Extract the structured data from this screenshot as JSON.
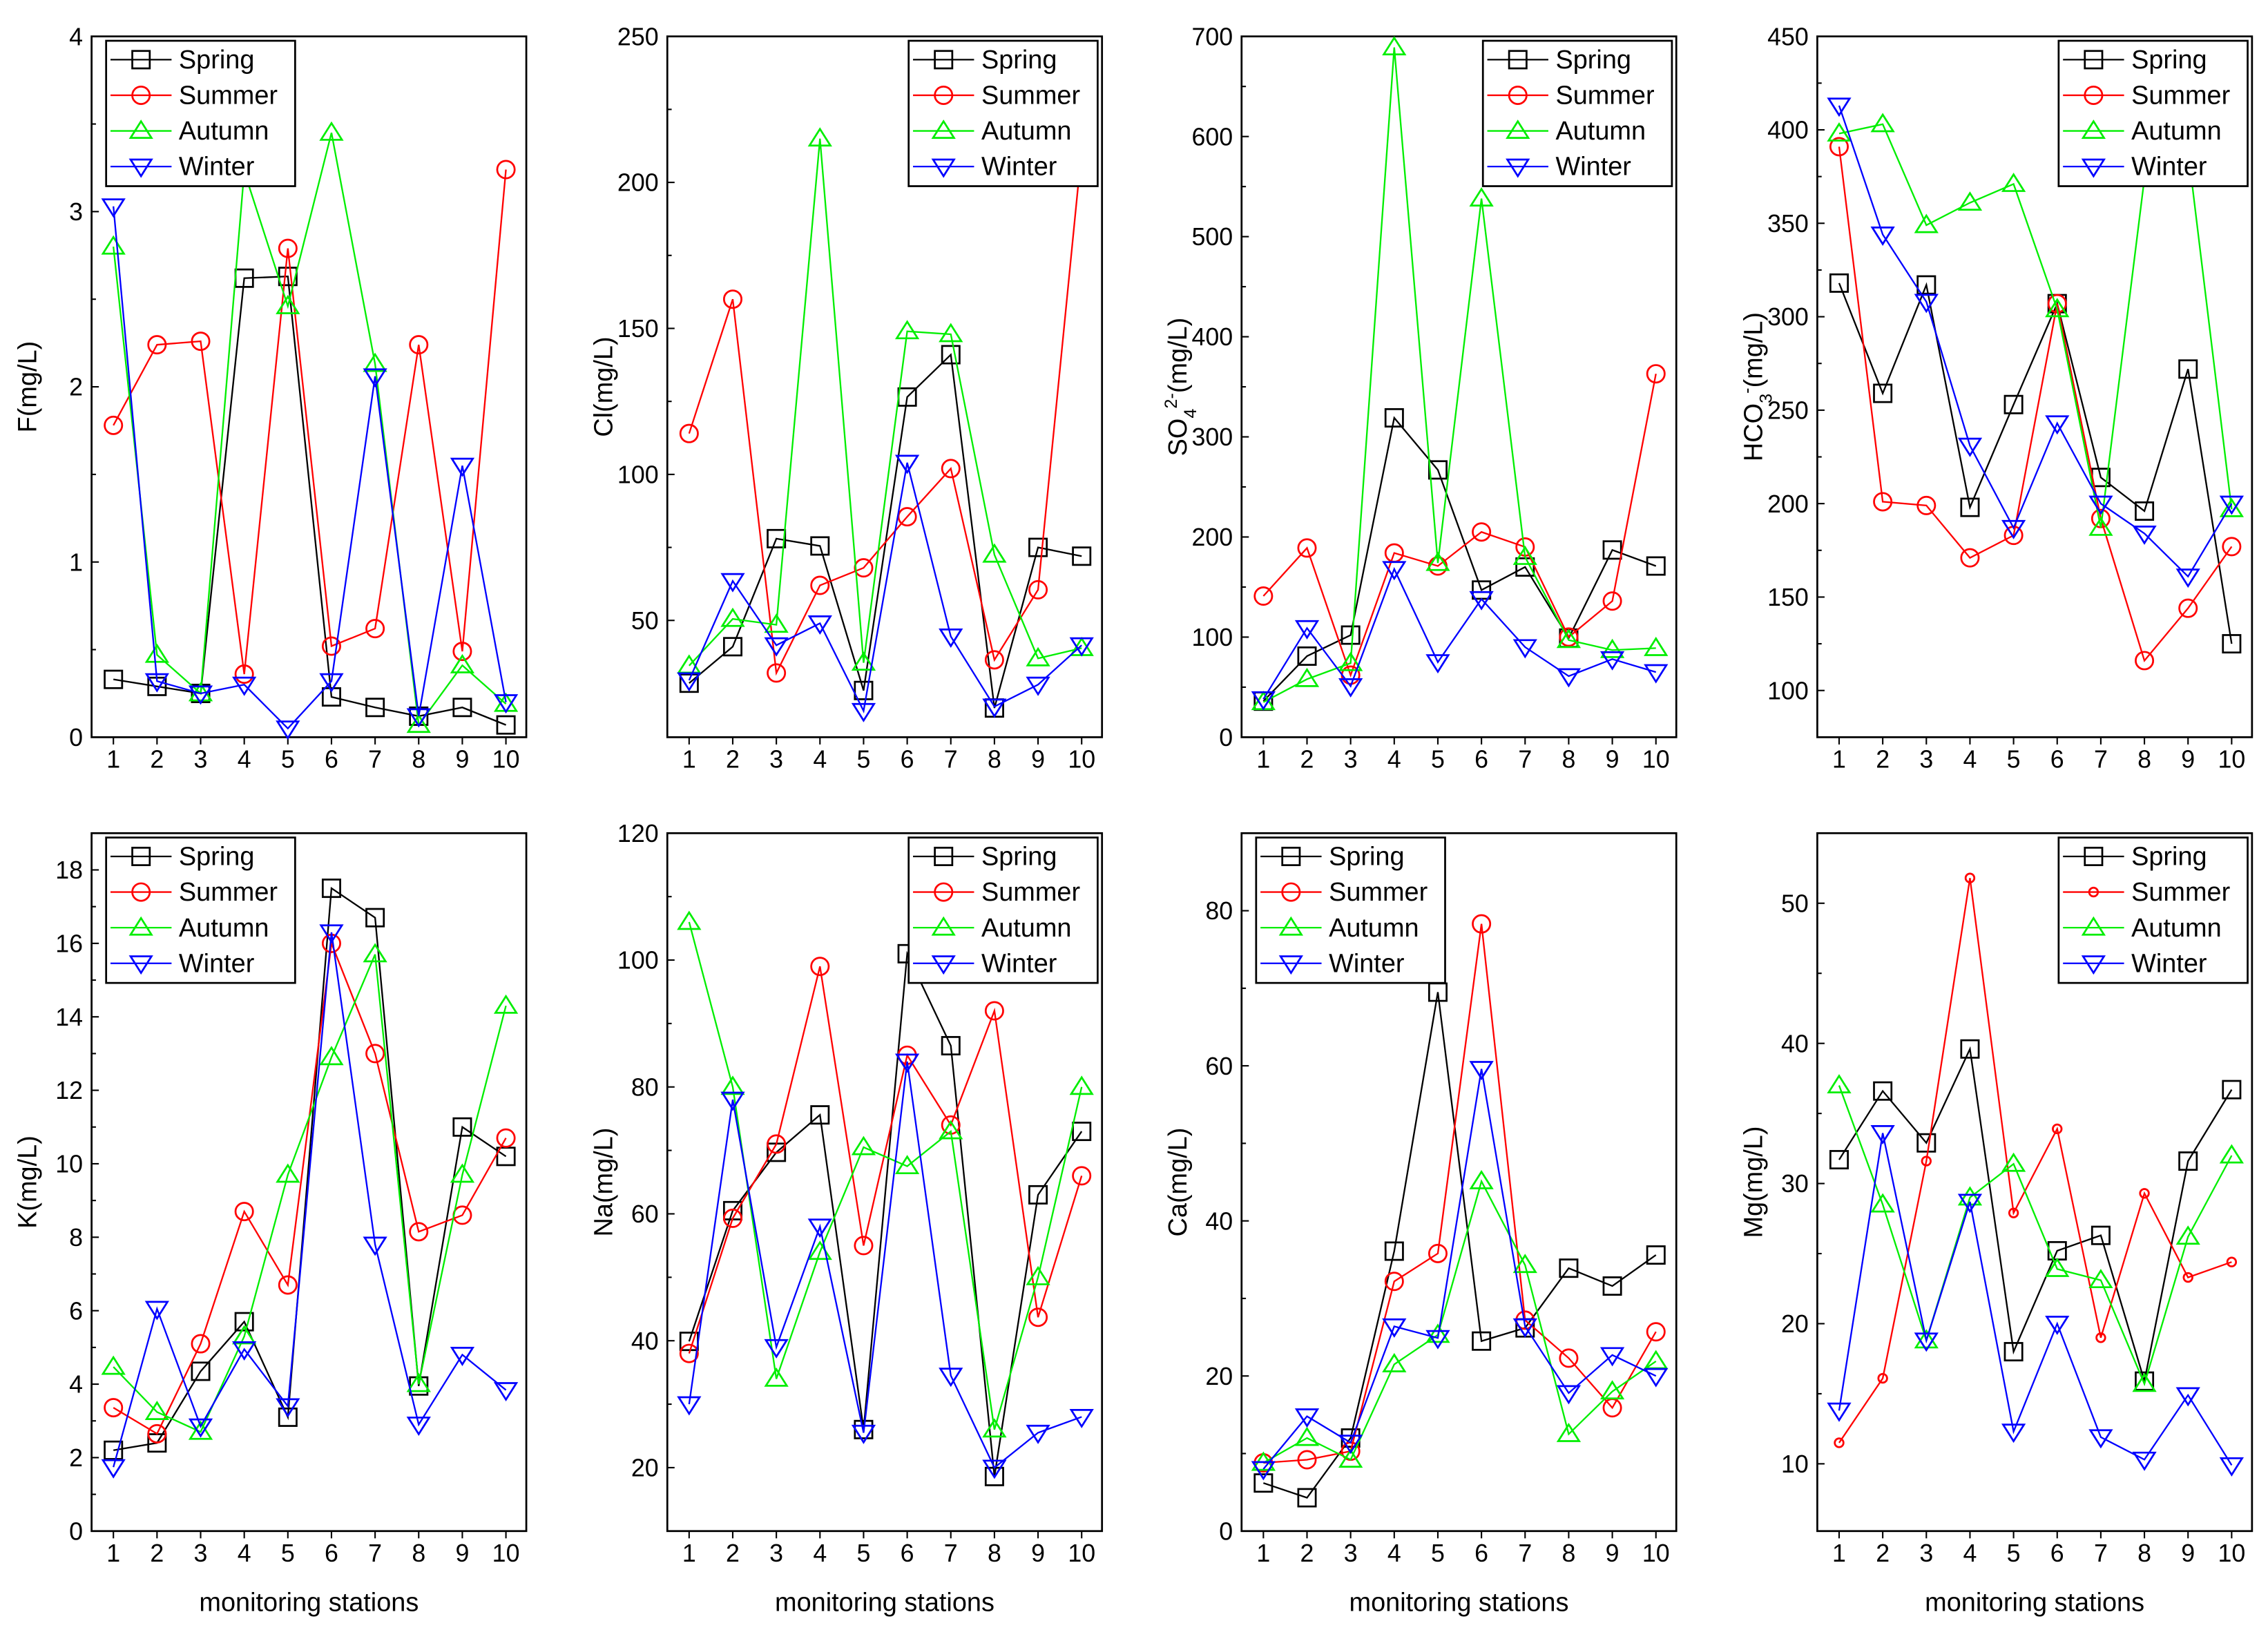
{
  "series_names": [
    "Spring",
    "Summer",
    "Autumn",
    "Winter"
  ],
  "series_colors": [
    "#000000",
    "#ff0000",
    "#00ee00",
    "#0000ff"
  ],
  "series_markers": [
    "square",
    "circle",
    "triangle-up",
    "triangle-down"
  ],
  "xlabel": "monitoring stations",
  "chart_data": [
    {
      "type": "line",
      "ylabel_parts": [
        [
          "F(mg/L)",
          ""
        ]
      ],
      "ylim": [
        0,
        4
      ],
      "yticks": [
        0,
        1,
        2,
        3,
        4
      ],
      "legend": "top-left",
      "x": [
        1,
        2,
        3,
        4,
        5,
        6,
        7,
        8,
        9,
        10
      ],
      "series": [
        {
          "name": "Spring",
          "values": [
            0.33,
            0.29,
            0.25,
            2.62,
            2.63,
            0.23,
            0.17,
            0.12,
            0.17,
            0.07
          ]
        },
        {
          "name": "Summer",
          "values": [
            1.78,
            2.24,
            2.26,
            0.36,
            2.79,
            0.52,
            0.62,
            2.24,
            0.49,
            3.24
          ]
        },
        {
          "name": "Autumn",
          "values": [
            2.8,
            0.47,
            0.25,
            3.23,
            2.46,
            3.45,
            2.13,
            0.07,
            0.41,
            0.19
          ]
        },
        {
          "name": "Winter",
          "values": [
            3.03,
            0.32,
            0.25,
            0.3,
            0.05,
            0.32,
            2.06,
            0.12,
            1.55,
            0.2
          ]
        }
      ]
    },
    {
      "type": "line",
      "ylabel_parts": [
        [
          "Cl(mg/L)",
          ""
        ]
      ],
      "ylim": [
        10,
        250
      ],
      "yticks": [
        50,
        100,
        150,
        200,
        250
      ],
      "legend": "top-right",
      "x": [
        1,
        2,
        3,
        4,
        5,
        6,
        7,
        8,
        9,
        10
      ],
      "series": [
        {
          "name": "Spring",
          "values": [
            28.5,
            41,
            78,
            75.5,
            26,
            126.5,
            141,
            20,
            75,
            72
          ]
        },
        {
          "name": "Summer",
          "values": [
            114,
            160,
            32,
            62,
            68,
            85.5,
            102,
            36.5,
            60.5,
            211
          ]
        },
        {
          "name": "Autumn",
          "values": [
            34.5,
            50.5,
            48.5,
            215,
            35.5,
            149,
            148,
            72.5,
            37,
            40.5
          ]
        },
        {
          "name": "Winter",
          "values": [
            29.5,
            63.5,
            41.5,
            49,
            19,
            104,
            44.5,
            20.5,
            28,
            41.5
          ]
        }
      ]
    },
    {
      "type": "line",
      "ylabel_parts": [
        [
          "SO",
          ""
        ],
        [
          "4",
          "sub"
        ],
        [
          "2-",
          "sup"
        ],
        [
          "(mg/L)",
          ""
        ]
      ],
      "ylim": [
        0,
        700
      ],
      "yticks": [
        0,
        100,
        200,
        300,
        400,
        500,
        600,
        700
      ],
      "legend": "top-right",
      "x": [
        1,
        2,
        3,
        4,
        5,
        6,
        7,
        8,
        9,
        10
      ],
      "series": [
        {
          "name": "Spring",
          "values": [
            36,
            81,
            102,
            319,
            267,
            147,
            170,
            99,
            187,
            171
          ]
        },
        {
          "name": "Summer",
          "values": [
            141,
            189,
            62,
            184,
            171,
            205,
            190,
            100,
            136,
            363
          ]
        },
        {
          "name": "Autumn",
          "values": [
            35,
            58,
            74,
            689,
            174,
            538,
            180,
            97,
            87,
            89
          ]
        },
        {
          "name": "Winter",
          "values": [
            38,
            109,
            51,
            168,
            75,
            138,
            90,
            61,
            78,
            65
          ]
        }
      ]
    },
    {
      "type": "line",
      "ylabel_parts": [
        [
          "HCO",
          ""
        ],
        [
          "3",
          "sub"
        ],
        [
          "-",
          "sup"
        ],
        [
          "(mg/L)",
          ""
        ]
      ],
      "ylim": [
        75,
        450
      ],
      "yticks": [
        100,
        150,
        200,
        250,
        300,
        350,
        400,
        450
      ],
      "legend": "top-right",
      "x": [
        1,
        2,
        3,
        4,
        5,
        6,
        7,
        8,
        9,
        10
      ],
      "series": [
        {
          "name": "Spring",
          "values": [
            318,
            259,
            317,
            198,
            253,
            307,
            214,
            196,
            272,
            125
          ]
        },
        {
          "name": "Summer",
          "values": [
            391,
            201,
            199,
            171,
            183,
            307,
            192,
            116,
            144,
            177
          ]
        },
        {
          "name": "Autumn",
          "values": [
            398,
            403,
            349,
            361,
            371,
            304,
            187,
            374,
            389,
            197
          ]
        },
        {
          "name": "Winter",
          "values": [
            413,
            344,
            308,
            231,
            187,
            243,
            200,
            184,
            161,
            200
          ]
        }
      ]
    },
    {
      "type": "line",
      "ylabel_parts": [
        [
          "K(mg/L)",
          ""
        ]
      ],
      "ylim": [
        0,
        19
      ],
      "yticks": [
        0,
        2,
        4,
        6,
        8,
        10,
        12,
        14,
        16,
        18
      ],
      "legend": "top-left",
      "x": [
        1,
        2,
        3,
        4,
        5,
        6,
        7,
        8,
        9,
        10
      ],
      "series": [
        {
          "name": "Spring",
          "values": [
            2.2,
            2.4,
            4.35,
            5.7,
            3.1,
            17.5,
            16.7,
            3.95,
            11,
            10.2
          ]
        },
        {
          "name": "Summer",
          "values": [
            3.36,
            2.65,
            5.1,
            8.7,
            6.7,
            16,
            13,
            8.15,
            8.6,
            10.7
          ]
        },
        {
          "name": "Autumn",
          "values": [
            4.47,
            3.24,
            2.7,
            5.3,
            9.7,
            12.9,
            15.7,
            4.0,
            9.7,
            14.3
          ]
        },
        {
          "name": "Winter",
          "values": [
            1.74,
            6.05,
            2.85,
            4.95,
            3.4,
            16.3,
            7.8,
            2.9,
            4.8,
            3.84
          ]
        }
      ]
    },
    {
      "type": "line",
      "ylabel_parts": [
        [
          "Na(mg/L)",
          ""
        ]
      ],
      "ylim": [
        10,
        120
      ],
      "yticks": [
        20,
        40,
        60,
        80,
        100,
        120
      ],
      "legend": "top-right",
      "x": [
        1,
        2,
        3,
        4,
        5,
        6,
        7,
        8,
        9,
        10
      ],
      "series": [
        {
          "name": "Spring",
          "values": [
            39.9,
            60.5,
            69.7,
            75.6,
            26,
            101,
            86.5,
            18.6,
            63,
            73
          ]
        },
        {
          "name": "Summer",
          "values": [
            38,
            59.3,
            71,
            99,
            55,
            85,
            74,
            92,
            43.7,
            66
          ]
        },
        {
          "name": "Autumn",
          "values": [
            106,
            80,
            34,
            54,
            70.5,
            67.5,
            73,
            26,
            50,
            80
          ]
        },
        {
          "name": "Winter",
          "values": [
            30,
            78,
            39,
            58,
            25.5,
            84,
            34.5,
            20,
            25.5,
            28
          ]
        }
      ]
    },
    {
      "type": "line",
      "ylabel_parts": [
        [
          "Ca(mg/L)",
          ""
        ]
      ],
      "ylim": [
        0,
        90
      ],
      "yticks": [
        0,
        20,
        40,
        60,
        80
      ],
      "legend": "top-left",
      "x": [
        1,
        2,
        3,
        4,
        5,
        6,
        7,
        8,
        9,
        10
      ],
      "series": [
        {
          "name": "Spring",
          "values": [
            6.2,
            4.3,
            12,
            36.1,
            69.5,
            24.5,
            26.2,
            33.9,
            31.6,
            35.6
          ]
        },
        {
          "name": "Summer",
          "values": [
            8.8,
            9.2,
            10.3,
            32.2,
            35.8,
            78.3,
            27.2,
            22.3,
            15.9,
            25.7
          ]
        },
        {
          "name": "Autumn",
          "values": [
            8.8,
            12,
            9.2,
            21.5,
            25.3,
            45.1,
            34.3,
            12.5,
            18,
            21.9
          ]
        },
        {
          "name": "Winter",
          "values": [
            8,
            14.8,
            11.4,
            26.4,
            24.9,
            59.6,
            26.4,
            17.8,
            22.7,
            20
          ]
        }
      ]
    },
    {
      "type": "line",
      "ylabel_parts": [
        [
          "Mg(mg/L)",
          ""
        ]
      ],
      "ylim": [
        5.2,
        55
      ],
      "yticks": [
        10,
        20,
        30,
        40,
        50
      ],
      "legend": "top-right",
      "small_summer_marker": true,
      "x": [
        1,
        2,
        3,
        4,
        5,
        6,
        7,
        8,
        9,
        10
      ],
      "series": [
        {
          "name": "Spring",
          "values": [
            31.7,
            36.6,
            32.9,
            39.6,
            18,
            25.2,
            26.3,
            15.9,
            31.6,
            36.7
          ]
        },
        {
          "name": "Summer",
          "values": [
            11.5,
            16.1,
            31.6,
            51.8,
            27.9,
            33.9,
            19,
            29.3,
            23.3,
            24.4
          ]
        },
        {
          "name": "Autumn",
          "values": [
            37,
            28.5,
            18.8,
            29,
            31.4,
            23.9,
            23.1,
            15.7,
            26.2,
            32
          ]
        },
        {
          "name": "Winter",
          "values": [
            13.8,
            33.6,
            18.8,
            28.7,
            12.3,
            20,
            11.9,
            10.3,
            14.9,
            9.9
          ]
        }
      ]
    }
  ]
}
